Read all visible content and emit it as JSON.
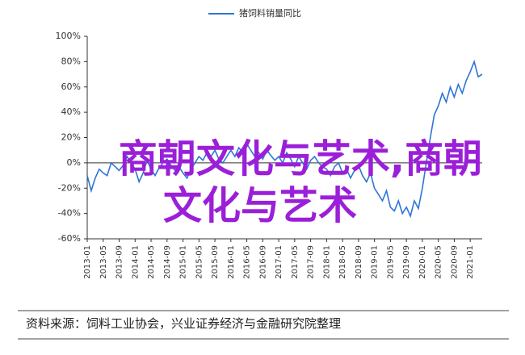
{
  "chart_data": {
    "type": "line",
    "legend_title": null,
    "series": [
      {
        "name": "猪饲料销量同比",
        "color": "#2e75d6",
        "values": [
          -10,
          -22,
          -12,
          -5,
          -8,
          -10,
          0,
          -3,
          -6,
          -2,
          5,
          0,
          -5,
          -15,
          -8,
          2,
          -5,
          -10,
          -4,
          0,
          3,
          -2,
          -6,
          -3,
          -8,
          -12,
          -5,
          0,
          5,
          2,
          8,
          5,
          10,
          3,
          0,
          5,
          10,
          5,
          12,
          8,
          15,
          10,
          5,
          8,
          3,
          10,
          6,
          2,
          5,
          0,
          8,
          3,
          -3,
          5,
          0,
          -5,
          2,
          5,
          0,
          -3,
          -5,
          -10,
          -3,
          0,
          -8,
          -5,
          -12,
          -6,
          -2,
          -10,
          -15,
          -8,
          -20,
          -25,
          -30,
          -22,
          -35,
          -38,
          -30,
          -40,
          -35,
          -42,
          -30,
          -36,
          -20,
          0,
          20,
          38,
          45,
          55,
          48,
          60,
          52,
          62,
          55,
          65,
          72,
          80,
          68,
          70
        ]
      }
    ],
    "categories": [
      "2013-01",
      null,
      null,
      null,
      "2013-05",
      null,
      null,
      null,
      "2013-09",
      null,
      null,
      null,
      "2014-01",
      null,
      null,
      null,
      "2014-05",
      null,
      null,
      null,
      "2014-09",
      null,
      null,
      null,
      "2015-01",
      null,
      null,
      null,
      "2015-05",
      null,
      null,
      null,
      "2015-09",
      null,
      null,
      null,
      "2016-01",
      null,
      null,
      null,
      "2016-05",
      null,
      null,
      null,
      "2016-09",
      null,
      null,
      null,
      "2017-01",
      null,
      null,
      null,
      "2017-05",
      null,
      null,
      null,
      "2017-09",
      null,
      null,
      null,
      "2018-01",
      null,
      null,
      null,
      "2018-05",
      null,
      null,
      null,
      "2018-09",
      null,
      null,
      null,
      "2019-01",
      null,
      null,
      null,
      "2019-05",
      null,
      null,
      null,
      "2019-09",
      null,
      null,
      null,
      "2020-01",
      null,
      null,
      null,
      "2020-05",
      null,
      null,
      null,
      "2020-09",
      null,
      null,
      null,
      "2021-01",
      null,
      null,
      null
    ],
    "ylim": [
      -60,
      100
    ],
    "yticks": [
      {
        "value": -60,
        "label": "-60%"
      },
      {
        "value": -40,
        "label": "-40%"
      },
      {
        "value": -20,
        "label": "-20%"
      },
      {
        "value": 0,
        "label": "0%"
      },
      {
        "value": 20,
        "label": "20%"
      },
      {
        "value": 40,
        "label": "40%"
      },
      {
        "value": 60,
        "label": "60%"
      },
      {
        "value": 80,
        "label": "80%"
      },
      {
        "value": 100,
        "label": "100%"
      }
    ],
    "source": "资料来源：饲料工业协会，兴业证券经济与金融研究院整理",
    "watermark": [
      "商朝文化与艺术,商朝",
      "文化与艺术"
    ]
  }
}
